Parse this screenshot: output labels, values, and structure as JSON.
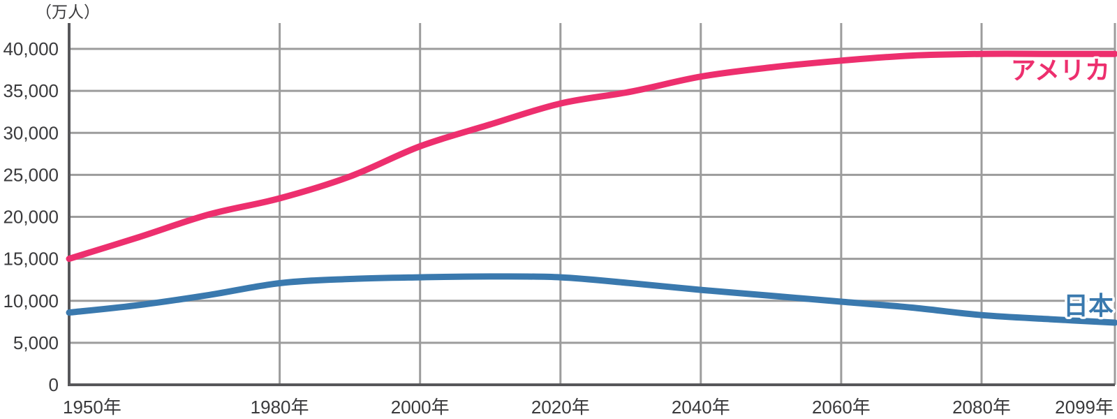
{
  "chart_data": {
    "type": "line",
    "title": "",
    "y_axis_unit_label": "（万人）",
    "xlim": [
      1950,
      2099
    ],
    "ylim": [
      0,
      40000
    ],
    "grid": true,
    "legend_position": "inline-right-of-lines",
    "x_ticks": [
      {
        "year": 1950,
        "label": "1950年"
      },
      {
        "year": 1980,
        "label": "1980年"
      },
      {
        "year": 2000,
        "label": "2000年"
      },
      {
        "year": 2020,
        "label": "2020年"
      },
      {
        "year": 2040,
        "label": "2040年"
      },
      {
        "year": 2060,
        "label": "2060年"
      },
      {
        "year": 2080,
        "label": "2080年"
      },
      {
        "year": 2099,
        "label": "2099年"
      }
    ],
    "y_ticks": [
      {
        "value": 0,
        "label": "0"
      },
      {
        "value": 5000,
        "label": "5,000"
      },
      {
        "value": 10000,
        "label": "10,000"
      },
      {
        "value": 15000,
        "label": "15,000"
      },
      {
        "value": 20000,
        "label": "20,000"
      },
      {
        "value": 25000,
        "label": "25,000"
      },
      {
        "value": 30000,
        "label": "30,000"
      },
      {
        "value": 35000,
        "label": "35,000"
      },
      {
        "value": 40000,
        "label": "40,000"
      }
    ],
    "x": [
      1950,
      1960,
      1970,
      1980,
      1990,
      2000,
      2010,
      2020,
      2030,
      2040,
      2050,
      2060,
      2070,
      2080,
      2090,
      2099
    ],
    "series": [
      {
        "key": "america",
        "name": "アメリカ",
        "color": "#ed2f6e",
        "values": [
          15000,
          17600,
          20300,
          22200,
          24800,
          28400,
          31000,
          33500,
          34900,
          36700,
          37800,
          38600,
          39200,
          39400,
          39400,
          39400
        ]
      },
      {
        "key": "japan",
        "name": "日本",
        "color": "#3a79ae",
        "values": [
          8600,
          9500,
          10700,
          12100,
          12600,
          12800,
          12900,
          12800,
          12100,
          11300,
          10600,
          9900,
          9200,
          8300,
          7800,
          7400
        ]
      }
    ]
  },
  "colors": {
    "background": "#ffffff",
    "gridline": "#9c9c9c",
    "axis": "#57575a",
    "tick_text": "#3a3a3c",
    "series_label_halo": "#ffffff"
  }
}
